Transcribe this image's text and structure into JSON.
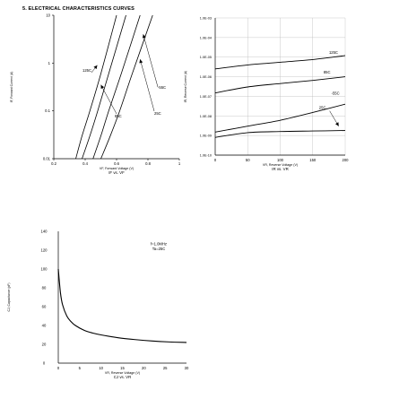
{
  "page_title": "5. ELECTRICAL CHARACTERISTICS CURVES",
  "chart_data": [
    {
      "type": "line",
      "caption": "IF vs. VF",
      "xlabel": "VF, Forward Voltage (V)",
      "ylabel": "IF, Forward Current (A)",
      "x_ticks": [
        "0.2",
        "0.4",
        "0.6",
        "0.8",
        "1"
      ],
      "y_ticks": [
        "0.01",
        "0.1",
        "1",
        "10"
      ],
      "xlim": [
        0.2,
        1.0
      ],
      "ylim": [
        0.01,
        10
      ],
      "y_scale": "log",
      "grid": false,
      "annotations": [
        "125C",
        "85C",
        "25C",
        "-55C"
      ],
      "series": [
        {
          "values": [
            {
              "x": 0.34,
              "y": 0.01
            },
            {
              "x": 0.38,
              "y": 0.03
            },
            {
              "x": 0.43,
              "y": 0.1
            },
            {
              "x": 0.5,
              "y": 0.6
            },
            {
              "x": 0.6,
              "y": 10
            }
          ]
        },
        {
          "values": [
            {
              "x": 0.38,
              "y": 0.01
            },
            {
              "x": 0.43,
              "y": 0.03
            },
            {
              "x": 0.48,
              "y": 0.1
            },
            {
              "x": 0.55,
              "y": 0.6
            },
            {
              "x": 0.66,
              "y": 10
            }
          ]
        },
        {
          "values": [
            {
              "x": 0.45,
              "y": 0.01
            },
            {
              "x": 0.5,
              "y": 0.03
            },
            {
              "x": 0.55,
              "y": 0.1
            },
            {
              "x": 0.63,
              "y": 0.6
            },
            {
              "x": 0.75,
              "y": 10
            }
          ]
        },
        {
          "values": [
            {
              "x": 0.5,
              "y": 0.01
            },
            {
              "x": 0.56,
              "y": 0.03
            },
            {
              "x": 0.62,
              "y": 0.1
            },
            {
              "x": 0.7,
              "y": 0.6
            },
            {
              "x": 0.83,
              "y": 10
            }
          ]
        }
      ]
    },
    {
      "type": "line",
      "caption": "IR vs. VR",
      "xlabel": "VR, Reverse Voltage (V)",
      "ylabel": "IR, Reverse Current (A)",
      "x_ticks": [
        "0",
        "50",
        "100",
        "150",
        "200"
      ],
      "y_ticks": [
        "1.0E-10",
        "1.0E-09",
        "1.0E-08",
        "1.0E-07",
        "1.0E-06",
        "1.0E-05",
        "1.0E-04",
        "1.0E-03"
      ],
      "xlim": [
        0,
        200
      ],
      "ylim": [
        1e-10,
        0.001
      ],
      "y_scale": "log",
      "grid": true,
      "annotations": [
        "125C",
        "85C",
        "-55C",
        "25C"
      ],
      "series": [
        {
          "values": [
            {
              "x": 0,
              "y": 2.5e-06
            },
            {
              "x": 50,
              "y": 4e-06
            },
            {
              "x": 100,
              "y": 5.5e-06
            },
            {
              "x": 150,
              "y": 7.5e-06
            },
            {
              "x": 200,
              "y": 1.2e-05
            }
          ]
        },
        {
          "values": [
            {
              "x": 0,
              "y": 1.5e-07
            },
            {
              "x": 50,
              "y": 3e-07
            },
            {
              "x": 100,
              "y": 4.5e-07
            },
            {
              "x": 150,
              "y": 6.5e-07
            },
            {
              "x": 200,
              "y": 1e-06
            }
          ]
        },
        {
          "values": [
            {
              "x": 0,
              "y": 1.5e-09
            },
            {
              "x": 50,
              "y": 3e-09
            },
            {
              "x": 100,
              "y": 6e-09
            },
            {
              "x": 150,
              "y": 1.5e-08
            },
            {
              "x": 200,
              "y": 4e-08
            }
          ]
        },
        {
          "values": [
            {
              "x": 0,
              "y": 8e-10
            },
            {
              "x": 50,
              "y": 1.4e-09
            },
            {
              "x": 100,
              "y": 1.6e-09
            },
            {
              "x": 150,
              "y": 1.7e-09
            },
            {
              "x": 200,
              "y": 1.8e-09
            }
          ]
        }
      ]
    },
    {
      "type": "line",
      "caption": "CJ vs. VR",
      "xlabel": "VR, Reverse Voltage (V)",
      "ylabel": "CJ, Capacitance (pF)",
      "x_ticks": [
        "0",
        "5",
        "10",
        "15",
        "20",
        "25",
        "30"
      ],
      "y_ticks": [
        "0",
        "20",
        "40",
        "60",
        "80",
        "100",
        "120",
        "140"
      ],
      "xlim": [
        0,
        30
      ],
      "ylim": [
        0,
        140
      ],
      "grid": false,
      "annotations": [
        "f=1.0MHz",
        "Ta=25C"
      ],
      "series": [
        {
          "values": [
            {
              "x": 0,
              "y": 100
            },
            {
              "x": 0.5,
              "y": 75
            },
            {
              "x": 1,
              "y": 62
            },
            {
              "x": 2,
              "y": 50
            },
            {
              "x": 3,
              "y": 44
            },
            {
              "x": 4,
              "y": 40
            },
            {
              "x": 6,
              "y": 35
            },
            {
              "x": 8,
              "y": 32
            },
            {
              "x": 10,
              "y": 30
            },
            {
              "x": 14,
              "y": 27
            },
            {
              "x": 18,
              "y": 25
            },
            {
              "x": 22,
              "y": 23.5
            },
            {
              "x": 26,
              "y": 22.5
            },
            {
              "x": 30,
              "y": 22
            }
          ]
        }
      ]
    }
  ]
}
